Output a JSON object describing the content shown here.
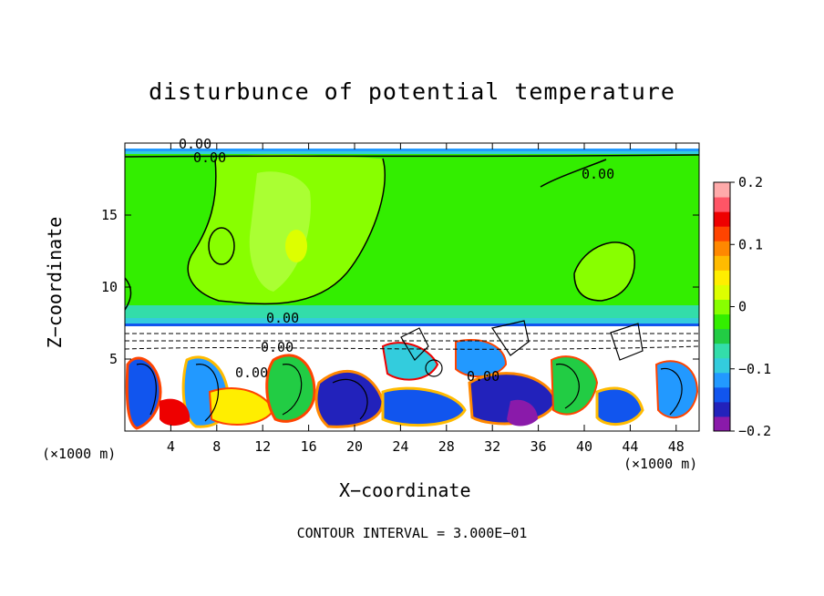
{
  "chart_data": {
    "type": "heatmap",
    "title": "disturbunce of potential temperature",
    "xlabel": "X−coordinate",
    "ylabel": "Z−coordinate",
    "x_unit_label": "(×1000 m)",
    "x_unit_label_secondary": "(×1000 m)",
    "xlim": [
      0,
      50
    ],
    "ylim": [
      0,
      20
    ],
    "x_ticks": [
      4,
      8,
      12,
      16,
      20,
      24,
      28,
      32,
      36,
      40,
      44,
      48
    ],
    "y_ticks": [
      5,
      10,
      15
    ],
    "colorbar": {
      "range": [
        -0.2,
        0.2
      ],
      "ticks": [
        {
          "value": 0.2,
          "label": "0.2"
        },
        {
          "value": 0.1,
          "label": "0.1"
        },
        {
          "value": 0.0,
          "label": "0"
        },
        {
          "value": -0.1,
          "label": "−0.1"
        },
        {
          "value": -0.2,
          "label": "−0.2"
        }
      ],
      "colors": [
        "#8a1aaa",
        "#2222bb",
        "#1155ee",
        "#2299ff",
        "#33ccdd",
        "#33ddaa",
        "#22cc44",
        "#33ee00",
        "#88ff00",
        "#ddff00",
        "#ffee00",
        "#ffbb00",
        "#ff8800",
        "#ff4400",
        "#ee0000",
        "#ff5566",
        "#ffaaaa"
      ]
    },
    "contour_labels": [
      "0.00",
      "0.00",
      "0.00",
      "0.00",
      "0.00",
      "0.00",
      "0.00"
    ],
    "contour_interval_text": "CONTOUR INTERVAL = 3.000E−01"
  }
}
